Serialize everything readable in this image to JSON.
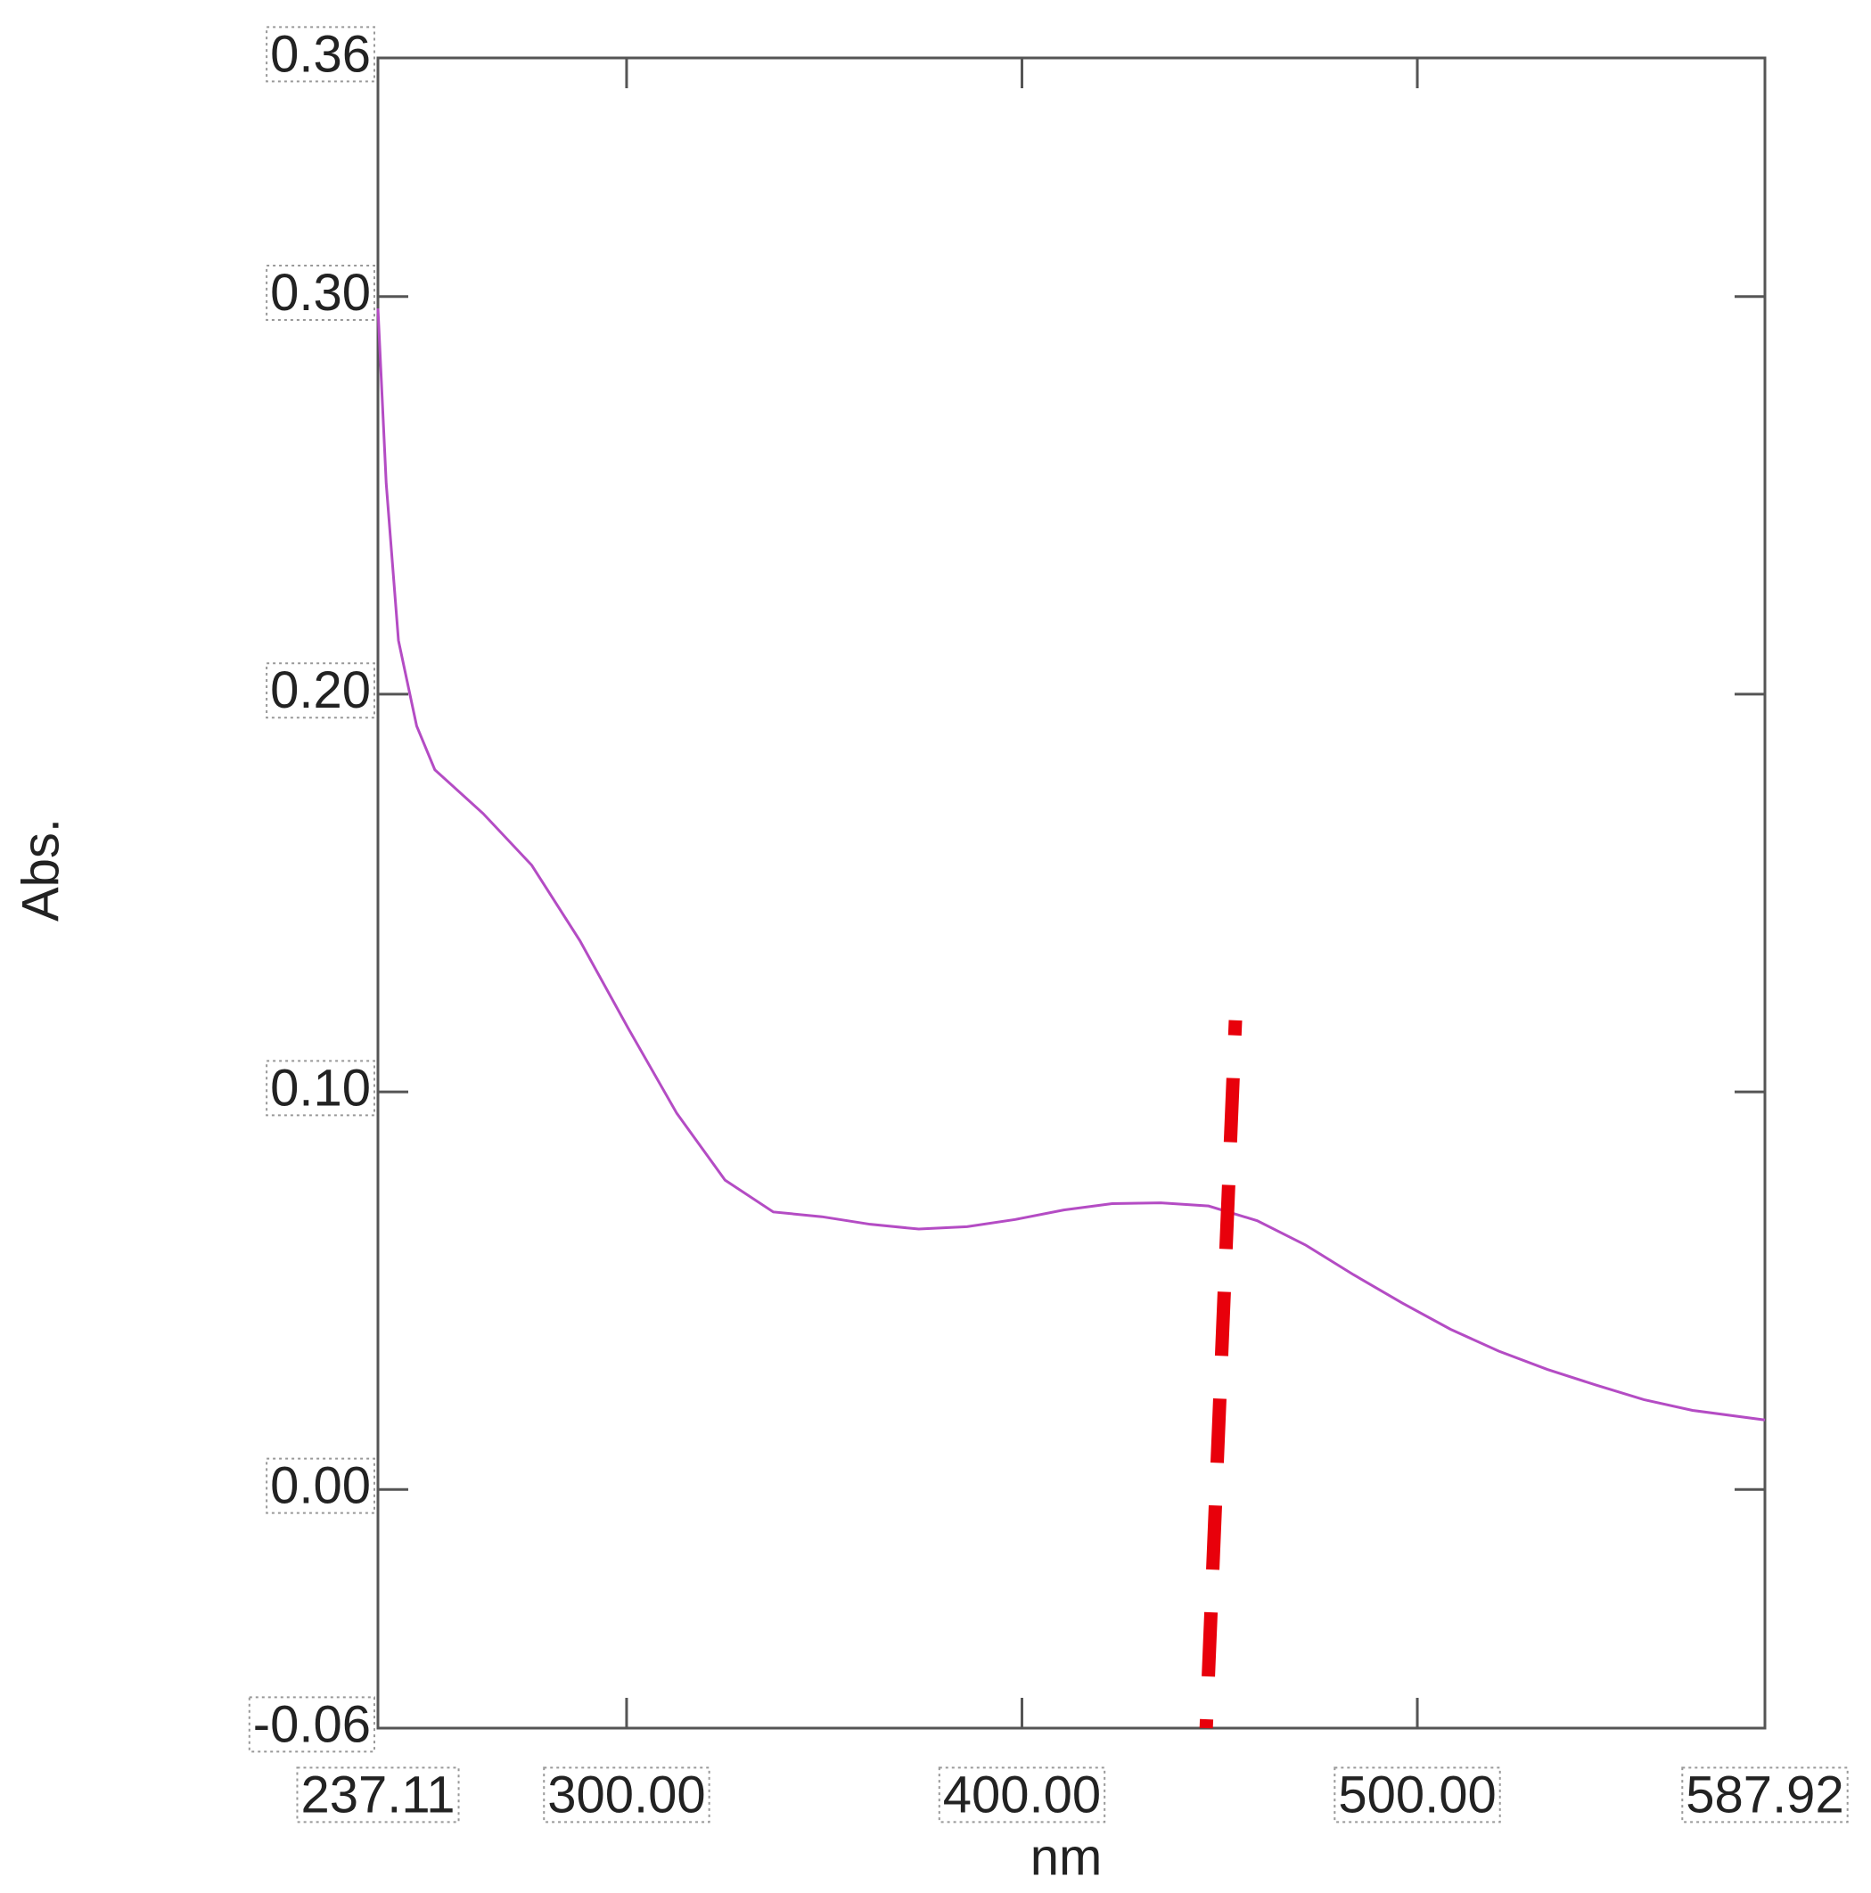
{
  "chart_data": {
    "type": "line",
    "x_label": "nm",
    "y_label": "Abs.",
    "xlim": [
      237.11,
      587.92
    ],
    "ylim": [
      -0.06,
      0.36
    ],
    "xticks": [
      237.11,
      {
        "value": 300,
        "label": "300.00"
      },
      {
        "value": 400,
        "label": "400.00"
      },
      {
        "value": 500,
        "label": "500.00"
      },
      587.92
    ],
    "yticks": [
      -0.06,
      {
        "value": 0,
        "label": "0.00"
      },
      {
        "value": 0.1,
        "label": "0.10"
      },
      {
        "value": 0.2,
        "label": "0.20"
      },
      {
        "value": 0.3,
        "label": "0.30"
      },
      0.36
    ],
    "x": [
      237.11,
      239.2,
      242.3,
      246.9,
      251.5,
      263.7,
      276.0,
      288.2,
      300.4,
      312.7,
      324.9,
      337.1,
      349.4,
      361.6,
      373.9,
      386.1,
      398.3,
      410.6,
      422.8,
      435.1,
      447.2,
      459.5,
      471.7,
      483.9,
      496.2,
      508.4,
      520.6,
      532.9,
      545.1,
      557.3,
      569.6,
      587.92
    ],
    "series": [
      {
        "color": "#b44cc4",
        "values": [
          0.297,
          0.253,
          0.2135,
          0.192,
          0.181,
          0.17,
          0.157,
          0.138,
          0.116,
          0.0946,
          0.0778,
          0.0698,
          0.0686,
          0.0667,
          0.0655,
          0.0661,
          0.0679,
          0.0703,
          0.0719,
          0.0721,
          0.0713,
          0.0676,
          0.0615,
          0.054,
          0.0469,
          0.0403,
          0.0348,
          0.0302,
          0.0263,
          0.0226,
          0.0199,
          0.0175
        ]
      }
    ],
    "annotation_line": {
      "color": "#e8000b",
      "x": [
        446.6,
        454.0
      ],
      "values": [
        -0.06,
        0.118
      ]
    }
  }
}
